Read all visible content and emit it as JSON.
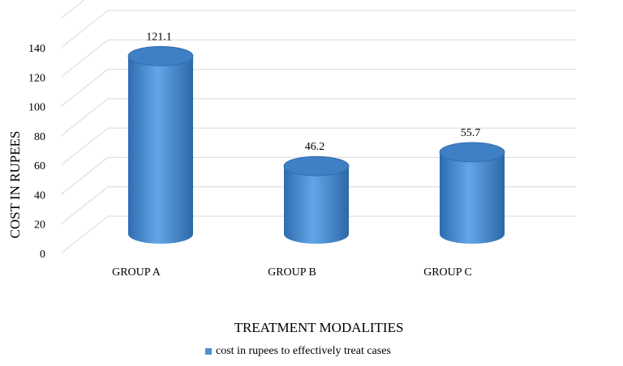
{
  "chart_data": {
    "type": "bar",
    "style": "3d-cylinder",
    "categories": [
      "GROUP A",
      "GROUP B",
      "GROUP C"
    ],
    "series": [
      {
        "name": "cost in rupees to effectively treat cases",
        "values": [
          121.1,
          46.2,
          55.7
        ],
        "color": "#4f8fd1"
      }
    ],
    "data_labels": [
      "121.1",
      "46.2",
      "55.7"
    ],
    "ylim": [
      0,
      140
    ],
    "yticks": [
      "0",
      "20",
      "40",
      "60",
      "80",
      "100",
      "120",
      "140"
    ],
    "ylabel": "COST IN RUPEES",
    "xlabel": "TREATMENT MODALITIES",
    "grid": true,
    "legend_position": "bottom"
  }
}
